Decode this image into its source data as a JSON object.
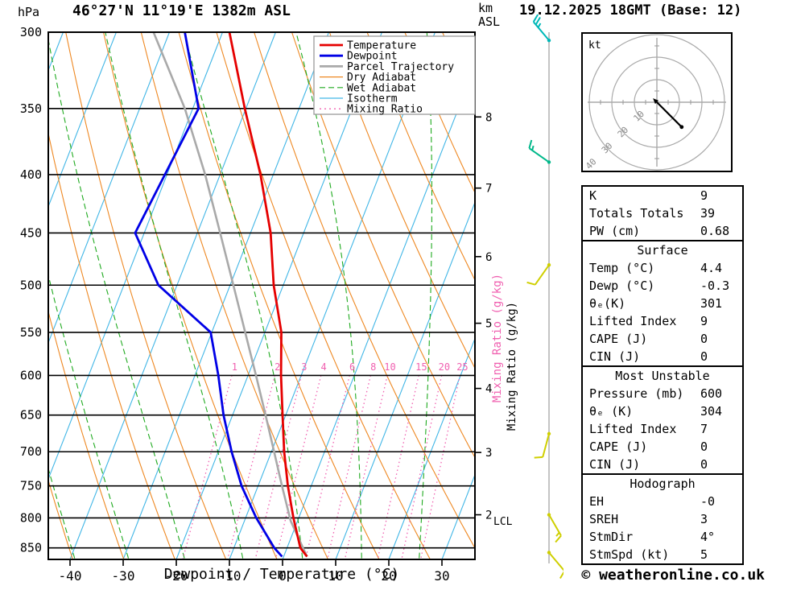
{
  "header": {
    "pressure_unit": "hPa",
    "station_title": "46°27'N 11°19'E 1382m ASL",
    "altitude_unit_line1": "km",
    "altitude_unit_line2": "ASL",
    "datetime_title": "19.12.2025 18GMT (Base: 12)"
  },
  "axes": {
    "pressure_ticks": [
      300,
      350,
      400,
      450,
      500,
      550,
      600,
      650,
      700,
      750,
      800,
      850
    ],
    "temp_ticks": [
      -40,
      -30,
      -20,
      -10,
      0,
      10,
      20,
      30
    ],
    "xlabel": "Dewpoint / Temperature (°C)",
    "km_ticks": [
      {
        "km": 8,
        "p": 356
      },
      {
        "km": 7,
        "p": 411
      },
      {
        "km": 6,
        "p": 472
      },
      {
        "km": 5,
        "p": 540
      },
      {
        "km": 4,
        "p": 616
      },
      {
        "km": 3,
        "p": 701
      },
      {
        "km": 2,
        "p": 795
      }
    ],
    "mixing_ratio_axis_label": "Mixing Ratio (g/kg)",
    "lcl_label": "LCL",
    "lcl_pressure": 805
  },
  "legend": [
    {
      "label": "Temperature",
      "color": "#e50000",
      "width": 2.8,
      "dash": ""
    },
    {
      "label": "Dewpoint",
      "color": "#0000e6",
      "width": 2.8,
      "dash": ""
    },
    {
      "label": "Parcel Trajectory",
      "color": "#a9a9a9",
      "width": 2.8,
      "dash": ""
    },
    {
      "label": "Dry Adiabat",
      "color": "#ee8822",
      "width": 1.2,
      "dash": ""
    },
    {
      "label": "Wet Adiabat",
      "color": "#1faa1f",
      "width": 1.2,
      "dash": "7,4"
    },
    {
      "label": "Isotherm",
      "color": "#41b6e6",
      "width": 1.2,
      "dash": ""
    },
    {
      "label": "Mixing Ratio",
      "color": "#f060b0",
      "width": 1.4,
      "dash": "2,4"
    }
  ],
  "chart_data": {
    "type": "skewt_log_p_sounding",
    "pressure_range_hpa": [
      300,
      870
    ],
    "temp_axis_range_c": [
      -44,
      36
    ],
    "isotherms": {
      "min": -80,
      "max": 40,
      "step": 10
    },
    "dry_adiabats_theta_c": [
      -30,
      -20,
      -10,
      0,
      10,
      20,
      30,
      40,
      50,
      60,
      70,
      80,
      90,
      100,
      110,
      120
    ],
    "wet_adiabats_thetaw_c": [
      -40,
      -30,
      -20,
      -10,
      0,
      10,
      20,
      30,
      40
    ],
    "mixing_ratio_lines_gkg": [
      1,
      2,
      3,
      4,
      6,
      8,
      10,
      15,
      20,
      25
    ],
    "temperature_profile": [
      [
        865,
        4.4
      ],
      [
        850,
        2.5
      ],
      [
        800,
        -1.0
      ],
      [
        750,
        -4.4
      ],
      [
        700,
        -7.6
      ],
      [
        650,
        -10.6
      ],
      [
        600,
        -13.8
      ],
      [
        550,
        -16.9
      ],
      [
        500,
        -21.8
      ],
      [
        450,
        -26.2
      ],
      [
        400,
        -32.4
      ],
      [
        350,
        -40.2
      ],
      [
        300,
        -48.7
      ]
    ],
    "dewpoint_profile": [
      [
        865,
        -0.3
      ],
      [
        850,
        -2.4
      ],
      [
        800,
        -8.0
      ],
      [
        750,
        -13.1
      ],
      [
        700,
        -17.5
      ],
      [
        650,
        -21.7
      ],
      [
        600,
        -25.6
      ],
      [
        550,
        -30.2
      ],
      [
        500,
        -43.5
      ],
      [
        450,
        -51.7
      ],
      [
        400,
        -50.4
      ],
      [
        350,
        -48.9
      ],
      [
        300,
        -57.1
      ]
    ],
    "parcel_profile": [
      [
        865,
        4.4
      ],
      [
        805,
        -1.3
      ],
      [
        750,
        -5.5
      ],
      [
        700,
        -9.5
      ],
      [
        650,
        -13.8
      ],
      [
        600,
        -18.5
      ],
      [
        550,
        -23.7
      ],
      [
        500,
        -29.4
      ],
      [
        450,
        -35.7
      ],
      [
        400,
        -42.8
      ],
      [
        350,
        -51.5
      ],
      [
        300,
        -63.0
      ]
    ],
    "wind_barbs": [
      {
        "p": 305,
        "dir": 320,
        "spd": 25,
        "color": "#00b8b8"
      },
      {
        "p": 390,
        "dir": 305,
        "spd": 15,
        "color": "#00b88a"
      },
      {
        "p": 480,
        "dir": 215,
        "spd": 10,
        "color": "#cfcf00"
      },
      {
        "p": 675,
        "dir": 195,
        "spd": 10,
        "color": "#cfcf00"
      },
      {
        "p": 795,
        "dir": 150,
        "spd": 15,
        "color": "#cfcf00"
      },
      {
        "p": 858,
        "dir": 140,
        "spd": 10,
        "color": "#cfcf00"
      }
    ]
  },
  "hodograph": {
    "unit_label": "kt",
    "ring_labels": [
      10,
      20,
      30,
      40
    ],
    "trace_kt": [
      [
        0,
        0
      ],
      [
        3,
        -3
      ],
      [
        6,
        -6
      ],
      [
        11,
        -11
      ]
    ]
  },
  "tables": [
    {
      "header": null,
      "rows": [
        [
          "K",
          "9"
        ],
        [
          "Totals Totals",
          "39"
        ],
        [
          "PW (cm)",
          "0.68"
        ]
      ]
    },
    {
      "header": "Surface",
      "rows": [
        [
          "Temp (°C)",
          "4.4"
        ],
        [
          "Dewp (°C)",
          "-0.3"
        ],
        [
          "θₑ(K)",
          "301"
        ],
        [
          "Lifted Index",
          "9"
        ],
        [
          "CAPE (J)",
          "0"
        ],
        [
          "CIN (J)",
          "0"
        ]
      ]
    },
    {
      "header": "Most Unstable",
      "rows": [
        [
          "Pressure (mb)",
          "600"
        ],
        [
          "θₑ (K)",
          "304"
        ],
        [
          "Lifted Index",
          "7"
        ],
        [
          "CAPE (J)",
          "0"
        ],
        [
          "CIN (J)",
          "0"
        ]
      ]
    },
    {
      "header": "Hodograph",
      "rows": [
        [
          "EH",
          "-0"
        ],
        [
          "SREH",
          "3"
        ],
        [
          "StmDir",
          "4°"
        ],
        [
          "StmSpd (kt)",
          "5"
        ]
      ]
    }
  ],
  "footer": {
    "copyright": "© weatheronline.co.uk"
  }
}
